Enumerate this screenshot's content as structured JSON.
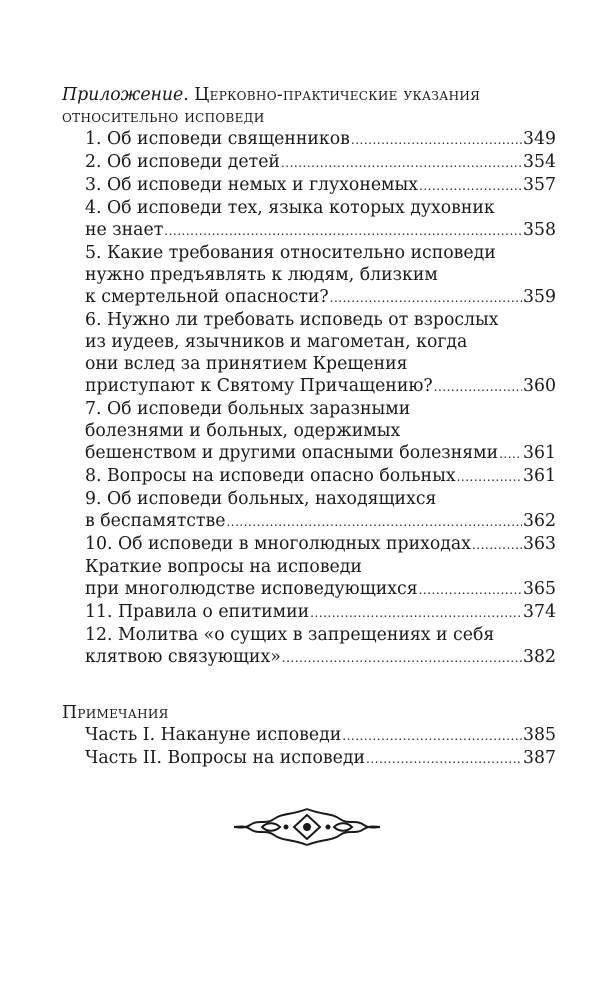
{
  "appendix": {
    "label": "Приложение.",
    "title_line1": "Церковно-практические указания",
    "title_line2": "относительно исповеди",
    "entries": [
      {
        "lines": [],
        "last": "1. Об исповеди священников",
        "page": "349"
      },
      {
        "lines": [],
        "last": "2. Об исповеди детей",
        "page": "354"
      },
      {
        "lines": [],
        "last": "3. Об исповеди немых и глухонемых",
        "page": "357"
      },
      {
        "lines": [
          "4. Об исповеди тех, языка которых духовник"
        ],
        "last": "не знает",
        "page": "358"
      },
      {
        "lines": [
          "5. Какие требования относительно исповеди",
          "нужно предъявлять к людям, близким"
        ],
        "last": "к смертельной опасности?",
        "page": "359"
      },
      {
        "lines": [
          "6. Нужно ли требовать исповедь от взрослых",
          "из иудеев, язычников и магометан, когда",
          "они вслед за принятием Крещения"
        ],
        "last": "приступают к Святому Причащению?",
        "page": "360"
      },
      {
        "lines": [
          "7. Об исповеди больных заразными",
          "болезнями и больных, одержимых"
        ],
        "last": "бешенством и другими опасными болезнями",
        "page": "361"
      },
      {
        "lines": [],
        "last": "8. Вопросы на исповеди опасно больных",
        "page": "361"
      },
      {
        "lines": [
          "9. Об исповеди больных, находящихся"
        ],
        "last": "в беспамятстве",
        "page": "362"
      },
      {
        "lines": [],
        "last": "10. Об исповеди в многолюдных приходах",
        "page": "363"
      },
      {
        "lines": [
          "Краткие вопросы на исповеди"
        ],
        "last": "при многолюдстве исповедующихся",
        "page": "365"
      },
      {
        "lines": [],
        "last": "11. Правила о епитимии",
        "page": "374"
      },
      {
        "lines": [
          "12. Молитва «о сущих в запрещениях и себя"
        ],
        "last": "клятвою связующих»",
        "page": "382"
      }
    ]
  },
  "notes": {
    "title": "Примечания",
    "entries": [
      {
        "lines": [],
        "last": "Часть I. Накануне исповеди",
        "page": "385"
      },
      {
        "lines": [],
        "last": "Часть II. Вопросы на исповеди",
        "page": "387"
      }
    ]
  },
  "ornament": {
    "icon": "decorative-ornament-icon"
  }
}
